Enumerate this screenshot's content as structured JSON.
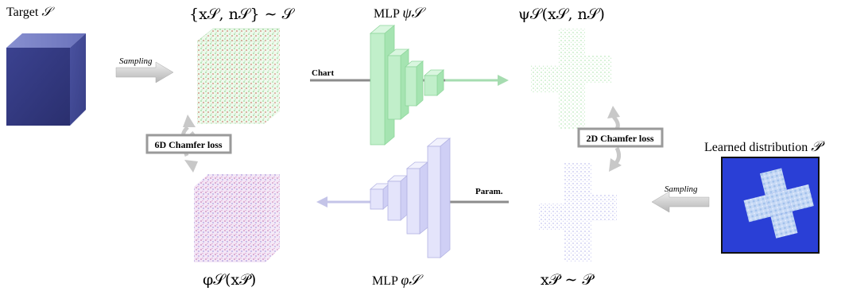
{
  "labels": {
    "target": "Target",
    "target_symbol": "𝒮",
    "pointcloud_title": "{x𝒮, n𝒮} ∼ 𝒮",
    "mlp_chart_title": "MLP",
    "mlp_chart_symbol": "ψ𝒮",
    "chart_output_title": "ψ𝒮(x𝒮, n𝒮)",
    "sampling_left": "Sampling",
    "sampling_right": "Sampling",
    "chart_arrow": "Chart",
    "param_arrow": "Param.",
    "chamfer_6d": "6D Chamfer loss",
    "chamfer_2d": "2D Chamfer loss",
    "learned_distribution": "Learned distribution",
    "learned_symbol": "𝒫",
    "recon_title": "φ𝒮(x𝒫)",
    "mlp_param_title": "MLP",
    "mlp_param_symbol": "φ𝒮",
    "param_input_title": "x𝒫 ∼ 𝒫"
  },
  "colors": {
    "cube_blue": "#5a63a8",
    "chart_green": "#b8eec2",
    "param_lavender": "#e6e6fb",
    "arrow_grey": "#c9c9c9",
    "distribution_bg": "#2a3fd6"
  }
}
